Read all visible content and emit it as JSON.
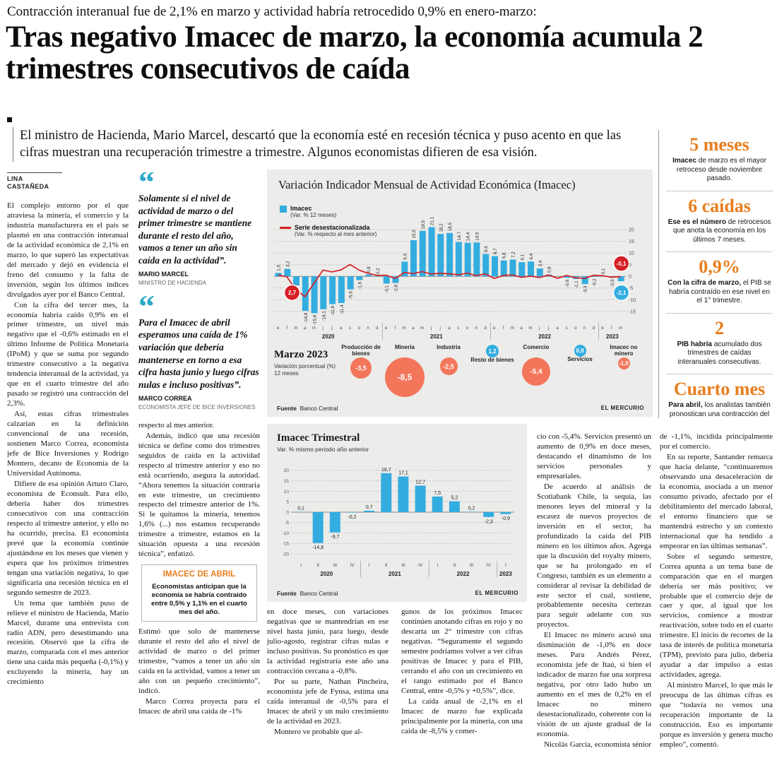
{
  "colors": {
    "bar_blue": "#33ade0",
    "line_red": "#d61f26",
    "bubble_negative": "#f3765b",
    "bubble_positive": "#33ade0",
    "accent_orange": "#e87e1e",
    "quote_teal": "#2ca9c9",
    "panel_bg": "#ececea"
  },
  "header": {
    "kicker": "Contracción interanual fue de 2,1% en marzo y actividad habría retrocedido 0,9% en enero-marzo:",
    "headline": "Tras negativo Imacec de marzo, la economía acumula 2 trimestres consecutivos de caída",
    "subhead": "El ministro de Hacienda, Mario Marcel, descartó que la economía esté en recesión técnica y puso acento en que las cifras muestran una recuperación trimestre a trimestre. Algunos economistas difieren de esa visión."
  },
  "byline": "LINA CASTAÑEDA",
  "quotes": [
    {
      "text": "Solamente si el nivel de actividad de marzo o del primer trimestre se mantiene durante el resto del año, vamos a tener un año sin caída en la actividad”.",
      "name": "MARIO MARCEL",
      "role": "MINISTRO DE HACIENDA"
    },
    {
      "text": "Para el Imacec de abril esperamos una caída de 1% variación que debería mantenerse en torno a esa cifra hasta junio y luego cifras nulas e incluso positivas”.",
      "name": "MARCO CORREA",
      "role": "ECONOMISTA JEFE DE BICE INVERSIONES"
    }
  ],
  "abril_box": {
    "title": "IMACEC DE ABRIL",
    "text": "Economistas anticipan que la economía se habría contraído entre 0,5% y 1,1% en el cuarto mes del año."
  },
  "sidebar": {
    "items": [
      {
        "figure": "5 meses",
        "lead": "Imacec",
        "rest": "de marzo es el mayor retroceso desde noviembre pasado."
      },
      {
        "figure": "6 caídas",
        "lead": "Ese es el número",
        "rest": "de retrocesos que anota la economía en los últimos 7 meses."
      },
      {
        "figure": "0,9%",
        "lead": "Con la cifra de marzo,",
        "rest": "el PIB se habría contraído en ese nivel en el 1° trimestre."
      },
      {
        "figure": "2",
        "lead": "PIB habría",
        "rest": "acumulado dos trimestres de caídas interanuales consecutivas."
      },
      {
        "figure": "Cuarto mes",
        "lead": "Para abril,",
        "rest": "los analistas también pronostican una contracción del Imacec."
      }
    ]
  },
  "columns": {
    "col1": [
      "El complejo entorno por el que atraviesa la minería, el comercio y la industria manufacturera en el país se plasmó en una contracción interanual de la actividad económica de 2,1% en marzo, lo que superó las expectativas del mercado y dejó en evidencia el freno del consumo y la falta de inversión, según los últimos índices divulgados ayer por el Banco Central.",
      "Con la cifra del tercer mes, la economía habría caído 0,9% en el primer trimestre, un nivel más negativo que el -0,6% estimado en el último Informe de Política Monetaria (IPoM) y que se suma por segundo trimestre consecutivo a la negativa tendencia interanual de la actividad, ya que en el cuarto trimestre del año pasado se registró una contracción del 2,3%.",
      "Así, estas cifras trimestrales calzarían en la definición convencional de una recesión, sostienen Marco Correa, economista jefe de Bice Inversiones y Rodrigo Montero, decano de Economía de la Universidad Autónoma.",
      "Difiere de esa opinión Arturo Claro, economista de Econsult. Para ello, debería haber dos trimestres consecutivos con una contracción respecto al trimestre anterior, y ello no ha ocurrido, precisa. El economista prevé que la economía continúe ajustándose en los meses que vienen y espera que los próximos trimestres tengan una variación negativa, lo que significaría una recesión técnica en el segundo semestre de 2023.",
      "Un tema que también puso de relieve el ministro de Hacienda, Mario Marcel, durante una entrevista con radio ADN, pero desestimando una recesión. Observó que la cifra de marzo, comparada con el mes anterior tiene una caída más pequeña (-0,1%) y excluyendo la minería, hay un crecimiento"
    ],
    "col2_before": [
      "respecto al mes anterior.",
      "Además, indicó que una recesión técnica se define como dos trimestres seguidos de caída en la actividad respecto al trimestre anterior y eso no está ocurriendo, asegura la autoridad. “Ahora tenemos la situación contraria en este trimestre, un crecimiento respecto del trimestre anterior de 1%. Si le quitamos la minería, tenemos 1,6% (...) nos estamos recuperando trimestre a trimestre, estamos en la situación opuesta a una recesión técnica”, enfatizó."
    ],
    "col2_after": [
      "Estimó que solo de mantenerse durante el resto del año el nivel de actividad de marzo o del primer trimestre, “vamos a tener un año sin caída en la actividad, vamos a tener un año con un pequeño crecimiento”, indicó.",
      "Marco Correa proyecta para el Imacec de abril una caída de -1%"
    ],
    "col3": [
      "en doce meses, con variaciones negativas que se mantendrían en ese nivel hasta junio, para luego, desde julio-agosto, registrar cifras nulas e incluso positivas. Su pronóstico es que la actividad registraría este año una contracción cercana a -0,8%.",
      "Por su parte, Nathan Pincheira, economista jefe de Fynsa, estima una caída interanual de -0,5% para el Imacec de abril y un nulo crecimiento de la actividad en 2023.",
      "Montero ve probable que al-"
    ],
    "col4": [
      "gunos de los próximos Imacec continúen anotando cifras en rojo y no descarta un 2° trimestre con cifras negativas. “Seguramente el segundo semestre podríamos volver a ver cifras positivas de Imacec y para el PIB, cerrando el año con un crecimiento en el rango estimado por el Banco Central, entre -0,5% y +0,5%”, dice.",
      "La caída anual de -2,1% en el Imacec de marzo fue explicada principalmente por la minería, con una caída de -8,5% y comer-"
    ],
    "col5": [
      "cio con -5,4%. Servicios presentó un aumento de 0,9% en doce meses, destacando el dinamismo de los servicios personales y empresariales.",
      "De acuerdo al análisis de Scotiabank Chile, la sequía, las menores leyes del mineral y la escasez de nuevos proyectos de inversión en el sector, ha profundizado la caída del PIB minero en los últimos años. Agrega que la discusión del royalty minero, que se ha prolongado en el Congreso, también es un elemento a considerar al revisar la debilidad de este sector el cual, sostiene, probablemente necesita certezas para seguir adelante con sus proyectos.",
      "El Imacec no minero acusó una disminución de -1,0% en doce meses. Para Andrés Pérez, economista jefe de Itaú, si bien el indicador de marzo fue una sorpresa negativa, por otro lado hubo un aumento en el mes de 0,2% en el Imacec no minero desestacionalizado, coherente con la visión de un ajuste gradual de la economía.",
      "Nicolás García, economista sénior de Coopeuch, proyecta para abril una caída del Imacec"
    ],
    "col6": [
      "de -1,1%, incidida principalmente por el comercio.",
      "En su reporte, Santander remarca que hacia delante, “continuaremos observando una desaceleración de la economía, asociada a un menor consumo privado, afectado por el debilitamiento del mercado laboral, el entorno financiero que se mantendrá estrecho y un contexto internacional que ha tendido a empeorar en las últimas semanas”.",
      "Sobre el segundo semestre, Correa apunta a un tema base de comparación que en el margen debería ser más positivo; ve probable que el comercio deje de caer y que, al igual que los servicios, comience a mostrar reactivación, sobre todo en el cuarto trimestre. El inicio de recortes de la tasa de interés de política monetaria (TPM), previsto para julio, debería ayudar a dar impulso a estas actividades, agrega.",
      "Al ministro Marcel, lo que más le preocupa de las últimas cifras es que “todavía no vemos una recuperación importante de la construcción. Eso es importante porque es inversión y genera mucho empleo”, comentó."
    ]
  },
  "chart_data": [
    {
      "type": "bar",
      "title": "Variación Indicador Mensual de Actividad Económica (Imacec)",
      "legend": [
        {
          "label": "Imacec",
          "sublabel": "(Var. % 12 meses)",
          "swatch": "bar"
        },
        {
          "label": "Serie desestacionalizada",
          "sublabel": "(Var. % respecto al mes anterior)",
          "swatch": "line"
        }
      ],
      "ylim": [
        -19,
        27
      ],
      "yticks": [
        20,
        15,
        10,
        5,
        0,
        -5,
        -10,
        -15
      ],
      "x_months": [
        "e",
        "f",
        "m",
        "a",
        "m",
        "j",
        "j",
        "a",
        "s",
        "o",
        "n",
        "d",
        "e",
        "f",
        "m",
        "a",
        "m",
        "j",
        "j",
        "a",
        "s",
        "o",
        "n",
        "d",
        "e",
        "f",
        "m",
        "a",
        "m",
        "j",
        "j",
        "a",
        "s",
        "o",
        "n",
        "d",
        "e",
        "f",
        "m"
      ],
      "years": [
        {
          "label": "2020",
          "months": 12
        },
        {
          "label": "2021",
          "months": 12
        },
        {
          "label": "2022",
          "months": 12
        },
        {
          "label": "2023",
          "months": 3
        }
      ],
      "series": [
        {
          "name": "Imacec (Var. % 12 meses)",
          "kind": "bar",
          "values": [
            1.5,
            3.2,
            -3.9,
            -14.8,
            -15.8,
            -14.1,
            -11.9,
            -11.4,
            -5.6,
            -1.6,
            0.8,
            0.2,
            -3.1,
            -2.8,
            6.3,
            15.5,
            19.5,
            21.1,
            18.2,
            18.6,
            14.7,
            14.4,
            14.5,
            9.6,
            8.7,
            6.8,
            7.2,
            6.1,
            6.4,
            3.4,
            0.8,
            0.0,
            -0.6,
            -1.1,
            -3.3,
            -0.2,
            0.1,
            -0.5,
            -2.1
          ]
        },
        {
          "name": "Serie desestacionalizada (Var. % respecto al mes anterior)",
          "kind": "line",
          "values": [
            0.6,
            -0.2,
            -5.7,
            -8.7,
            -3.0,
            2.7,
            1.9,
            2.8,
            5.1,
            2.7,
            1.3,
            0.4,
            0.5,
            -0.9,
            1.6,
            1.2,
            2.0,
            1.0,
            1.3,
            1.1,
            0.7,
            1.4,
            0.3,
            1.1,
            -0.9,
            0.4,
            0.6,
            -0.4,
            0.1,
            -0.5,
            0.6,
            -0.8,
            0.4,
            -0.6,
            -0.9,
            0.5,
            0.3,
            -0.4,
            -0.1
          ]
        }
      ],
      "bar_labels": [
        "1,5",
        "3,2",
        "-3,9",
        "-14,8",
        "-15,8",
        "-14,1",
        "-11,9",
        "-11,4",
        "-5,6",
        "-1,6",
        "0,8",
        "0,2",
        "-3,1",
        "-2,8",
        "6,3",
        "15,5",
        "19,5",
        "21,1",
        "18,2",
        "18,6",
        "14,7",
        "14,4",
        "14,5",
        "9,6",
        "8,7",
        "6,8",
        "7,2",
        "6,1",
        "6,4",
        "3,4",
        "0,8",
        "",
        "-0,6",
        "-1,1",
        "-3,3",
        "-0,2",
        "0,1",
        "-0,5",
        ""
      ],
      "annotations": [
        {
          "text": "2,7",
          "color": "#d61f26",
          "month_index": 1.5,
          "value": -7
        },
        {
          "text": "-0,1",
          "color": "#d61f26",
          "month_index": 38,
          "value": 5.5
        },
        {
          "text": "-2,1",
          "color": "#33ade0",
          "month_index": 38,
          "value": -7
        }
      ]
    },
    {
      "type": "bubble",
      "title": "Marzo 2023",
      "subtitle": "Variación porcentual (%) 12 meses",
      "categories": [
        "Producción de bienes",
        "Minería",
        "Industria",
        "Resto de bienes",
        "Comercio",
        "Servicios",
        "Imacec no minero"
      ],
      "values": [
        -3.5,
        -8.5,
        -2.5,
        1.2,
        -5.4,
        0.9,
        -1.0
      ],
      "labels": [
        "-3,5",
        "-8,5",
        "-2,5",
        "1,2",
        "-5,4",
        "0,9",
        "-1,0"
      ],
      "source_label": "Fuente",
      "source": "Banco Central",
      "credit": "EL MERCURIO"
    },
    {
      "type": "bar",
      "title": "Imacec Trimestral",
      "subtitle": "Var. % mismo periodo año anterior",
      "ylim": [
        -22,
        22
      ],
      "yticks": [
        20,
        15,
        10,
        5,
        0,
        -5,
        -10,
        -15,
        -20
      ],
      "categories": [
        "I",
        "II",
        "III",
        "IV",
        "I",
        "II",
        "III",
        "IV",
        "I",
        "II",
        "III",
        "IV",
        "I"
      ],
      "years": [
        {
          "label": "2020",
          "quarters": 4
        },
        {
          "label": "2021",
          "quarters": 4
        },
        {
          "label": "2022",
          "quarters": 4
        },
        {
          "label": "2023",
          "quarters": 1
        }
      ],
      "values": [
        0.1,
        -14.8,
        -9.7,
        -0.2,
        0.7,
        18.7,
        17.1,
        12.7,
        7.5,
        5.2,
        0.2,
        -2.3,
        -0.9
      ],
      "labels": [
        "0,1",
        "-14,8",
        "-9,7",
        "-0,2",
        "0,7",
        "18,7",
        "17,1",
        "12,7",
        "7,5",
        "5,2",
        "0,2",
        "-2,3",
        "-0,9"
      ],
      "source_label": "Fuente",
      "source": "Banco Central",
      "credit": "EL MERCURIO"
    }
  ]
}
